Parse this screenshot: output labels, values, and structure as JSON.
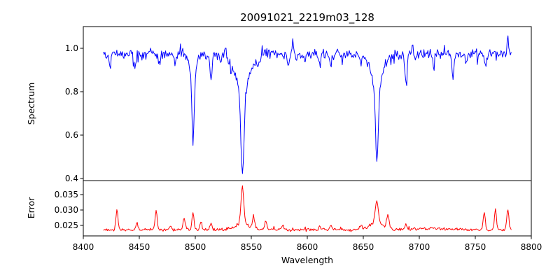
{
  "figure": {
    "title": "20091021_2219m03_128",
    "background_color": "#ffffff",
    "spine_color": "#000000"
  },
  "chart_data": [
    {
      "type": "line",
      "panel": "spectrum",
      "title": "20091021_2219m03_128",
      "xlabel": "Wavelength",
      "ylabel": "Spectrum",
      "legend": null,
      "grid": false,
      "line_color": "#0000ff",
      "xlim": [
        8400,
        8800
      ],
      "ylim": [
        0.39,
        1.1
      ],
      "xticks": [
        8400,
        8450,
        8500,
        8550,
        8600,
        8650,
        8700,
        8750,
        8800
      ],
      "xtick_labels": [
        "8400",
        "8450",
        "8500",
        "8550",
        "8600",
        "8650",
        "8700",
        "8750",
        "8800"
      ],
      "yticks": [
        0.4,
        0.6,
        0.8,
        1.0
      ],
      "ytick_labels": [
        "0.4",
        "0.6",
        "0.8",
        "1.0"
      ],
      "x_start": 8418,
      "x_end": 8782,
      "n_points": 520,
      "continuum_level": 0.973,
      "noise_amplitude": 0.034,
      "noise_seed": 42,
      "absorption_lines": [
        {
          "center": 8498.0,
          "min_value": 0.57,
          "depth": 0.415,
          "core_sigma": 1.0,
          "wing_sigma": 3.2,
          "wing_frac": 0.22
        },
        {
          "center": 8542.1,
          "min_value": 0.42,
          "depth": 0.568,
          "core_sigma": 1.4,
          "wing_sigma": 6.5,
          "wing_frac": 0.3
        },
        {
          "center": 8662.1,
          "min_value": 0.48,
          "depth": 0.508,
          "core_sigma": 1.25,
          "wing_sigma": 5.5,
          "wing_frac": 0.28
        },
        {
          "center": 8424,
          "min_value": 0.92,
          "depth": 0.055,
          "core_sigma": 0.9,
          "wing_sigma": 0.9,
          "wing_frac": 0
        },
        {
          "center": 8446,
          "min_value": 0.9,
          "depth": 0.075,
          "core_sigma": 1.0,
          "wing_sigma": 1.0,
          "wing_frac": 0
        },
        {
          "center": 8468,
          "min_value": 0.92,
          "depth": 0.055,
          "core_sigma": 0.9,
          "wing_sigma": 0.9,
          "wing_frac": 0
        },
        {
          "center": 8482,
          "min_value": 0.93,
          "depth": 0.04,
          "core_sigma": 0.8,
          "wing_sigma": 0.8,
          "wing_frac": 0
        },
        {
          "center": 8514,
          "min_value": 0.86,
          "depth": 0.11,
          "core_sigma": 1.1,
          "wing_sigma": 1.1,
          "wing_frac": 0
        },
        {
          "center": 8523,
          "min_value": 0.94,
          "depth": 0.035,
          "core_sigma": 0.8,
          "wing_sigma": 0.8,
          "wing_frac": 0
        },
        {
          "center": 8556,
          "min_value": 0.93,
          "depth": 0.04,
          "core_sigma": 0.9,
          "wing_sigma": 0.9,
          "wing_frac": 0
        },
        {
          "center": 8583,
          "min_value": 0.93,
          "depth": 0.045,
          "core_sigma": 0.9,
          "wing_sigma": 0.9,
          "wing_frac": 0
        },
        {
          "center": 8598,
          "min_value": 0.94,
          "depth": 0.035,
          "core_sigma": 0.8,
          "wing_sigma": 0.8,
          "wing_frac": 0
        },
        {
          "center": 8611,
          "min_value": 0.92,
          "depth": 0.05,
          "core_sigma": 0.9,
          "wing_sigma": 0.9,
          "wing_frac": 0
        },
        {
          "center": 8621,
          "min_value": 0.92,
          "depth": 0.05,
          "core_sigma": 0.9,
          "wing_sigma": 0.9,
          "wing_frac": 0
        },
        {
          "center": 8648,
          "min_value": 0.93,
          "depth": 0.04,
          "core_sigma": 0.9,
          "wing_sigma": 0.9,
          "wing_frac": 0
        },
        {
          "center": 8688,
          "min_value": 0.84,
          "depth": 0.13,
          "core_sigma": 1.0,
          "wing_sigma": 1.0,
          "wing_frac": 0
        },
        {
          "center": 8713,
          "min_value": 0.93,
          "depth": 0.045,
          "core_sigma": 0.9,
          "wing_sigma": 0.9,
          "wing_frac": 0
        },
        {
          "center": 8730,
          "min_value": 0.86,
          "depth": 0.1,
          "core_sigma": 0.9,
          "wing_sigma": 0.9,
          "wing_frac": 0
        },
        {
          "center": 8742,
          "min_value": 0.93,
          "depth": 0.04,
          "core_sigma": 0.8,
          "wing_sigma": 0.8,
          "wing_frac": 0
        },
        {
          "center": 8759,
          "min_value": 0.92,
          "depth": 0.055,
          "core_sigma": 0.9,
          "wing_sigma": 0.9,
          "wing_frac": 0
        }
      ],
      "emission_spikes": [
        {
          "center": 8587,
          "height": 0.055,
          "sigma": 0.6
        },
        {
          "center": 8694,
          "height": 0.045,
          "sigma": 0.6
        },
        {
          "center": 8779,
          "height": 0.085,
          "sigma": 0.6
        }
      ]
    },
    {
      "type": "line",
      "panel": "error",
      "ylabel": "Error",
      "legend": null,
      "grid": false,
      "line_color": "#ff0000",
      "xlim": [
        8400,
        8800
      ],
      "ylim": [
        0.0216,
        0.0395
      ],
      "yticks": [
        0.025,
        0.03,
        0.035
      ],
      "ytick_labels": [
        "0.025",
        "0.030",
        "0.035"
      ],
      "x_start": 8418,
      "x_end": 8782,
      "n_points": 520,
      "baseline": 0.0236,
      "noise_amplitude": 0.0007,
      "noise_seed": 1337,
      "peaks": [
        {
          "center": 8430,
          "height": 0.0066,
          "sigma": 0.9
        },
        {
          "center": 8448,
          "height": 0.0022,
          "sigma": 0.9
        },
        {
          "center": 8465,
          "height": 0.0064,
          "sigma": 0.9
        },
        {
          "center": 8478,
          "height": 0.0012,
          "sigma": 1.0
        },
        {
          "center": 8490,
          "height": 0.0035,
          "sigma": 1.0
        },
        {
          "center": 8498,
          "height": 0.0058,
          "sigma": 0.9
        },
        {
          "center": 8505,
          "height": 0.0025,
          "sigma": 0.9
        },
        {
          "center": 8514,
          "height": 0.002,
          "sigma": 0.9
        },
        {
          "center": 8542,
          "height": 0.0122,
          "sigma": 1.2
        },
        {
          "center": 8542,
          "height": 0.002,
          "sigma": 5.0
        },
        {
          "center": 8552,
          "height": 0.0042,
          "sigma": 1.0
        },
        {
          "center": 8563,
          "height": 0.0028,
          "sigma": 0.9
        },
        {
          "center": 8578,
          "height": 0.0015,
          "sigma": 0.9
        },
        {
          "center": 8611,
          "height": 0.0012,
          "sigma": 0.9
        },
        {
          "center": 8621,
          "height": 0.0015,
          "sigma": 0.9
        },
        {
          "center": 8648,
          "height": 0.0012,
          "sigma": 1.2
        },
        {
          "center": 8662,
          "height": 0.0072,
          "sigma": 1.3
        },
        {
          "center": 8662,
          "height": 0.0024,
          "sigma": 6.0
        },
        {
          "center": 8672,
          "height": 0.0043,
          "sigma": 1.0
        },
        {
          "center": 8688,
          "height": 0.0015,
          "sigma": 0.9
        },
        {
          "center": 8712,
          "height": 0.0004,
          "sigma": 20.0
        },
        {
          "center": 8758,
          "height": 0.0058,
          "sigma": 0.9
        },
        {
          "center": 8768,
          "height": 0.0062,
          "sigma": 0.9
        },
        {
          "center": 8779,
          "height": 0.0068,
          "sigma": 0.9
        }
      ]
    }
  ]
}
